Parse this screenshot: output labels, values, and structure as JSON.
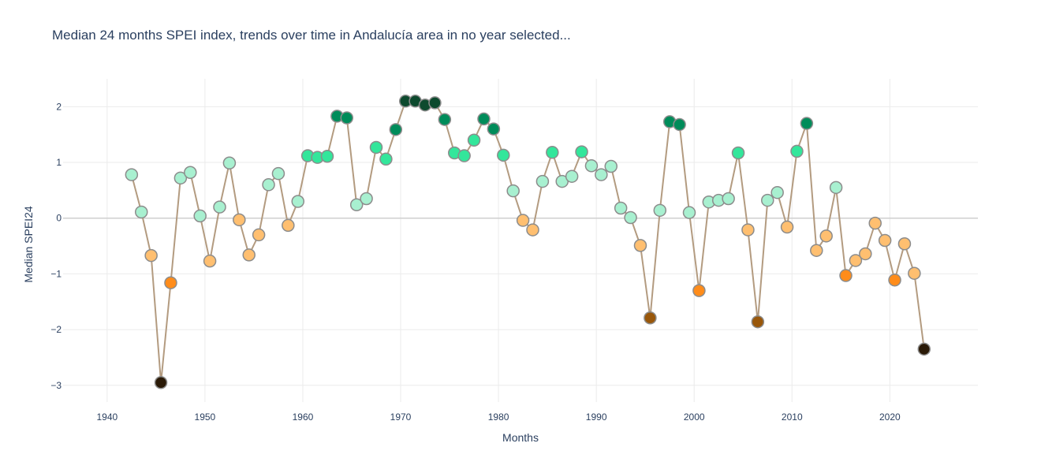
{
  "chart_data": {
    "type": "scatter",
    "mode": "lines+markers",
    "title": "Median 24 months SPEI index, trends over time in Andalucía area in no year selected...",
    "xlabel": "Months",
    "ylabel": "Median SPEI24",
    "xlim": [
      1935.5,
      2029
    ],
    "ylim": [
      -3.3,
      2.5
    ],
    "xticks": [
      1940,
      1950,
      1960,
      1970,
      1980,
      1990,
      2000,
      2010,
      2020
    ],
    "xtick_labels": [
      "1940",
      "1950",
      "1960",
      "1970",
      "1980",
      "1990",
      "2000",
      "2010",
      "2020"
    ],
    "yticks": [
      -3,
      -2,
      -1,
      0,
      1,
      2
    ],
    "ytick_labels": [
      "−3",
      "−2",
      "−1",
      "0",
      "1",
      "2"
    ],
    "grid": true,
    "line_color": "#b39b80",
    "marker_outline_color": "#8c8c8c",
    "color_scale": [
      {
        "min": 2.0,
        "color": "#0d4a2e"
      },
      {
        "min": 1.5,
        "color": "#008c5a"
      },
      {
        "min": 1.0,
        "color": "#33e69b"
      },
      {
        "min": 0.0,
        "color": "#a8f0d0"
      },
      {
        "min": -1.0,
        "color": "#ffbf70"
      },
      {
        "min": -1.5,
        "color": "#ff8c1a"
      },
      {
        "min": -2.0,
        "color": "#99570a"
      },
      {
        "min": -99,
        "color": "#2b1a07"
      }
    ],
    "x": [
      1942.5,
      1943.5,
      1944.5,
      1945.5,
      1946.5,
      1947.5,
      1948.5,
      1949.5,
      1950.5,
      1951.5,
      1952.5,
      1953.5,
      1954.5,
      1955.5,
      1956.5,
      1957.5,
      1958.5,
      1959.5,
      1960.5,
      1961.5,
      1962.5,
      1963.5,
      1964.5,
      1965.5,
      1966.5,
      1967.5,
      1968.5,
      1969.5,
      1970.5,
      1971.5,
      1972.5,
      1973.5,
      1974.5,
      1975.5,
      1976.5,
      1977.5,
      1978.5,
      1979.5,
      1980.5,
      1981.5,
      1982.5,
      1983.5,
      1984.5,
      1985.5,
      1986.5,
      1987.5,
      1988.5,
      1989.5,
      1990.5,
      1991.5,
      1992.5,
      1993.5,
      1994.5,
      1995.5,
      1996.5,
      1997.5,
      1998.5,
      1999.5,
      2000.5,
      2001.5,
      2002.5,
      2003.5,
      2004.5,
      2005.5,
      2006.5,
      2007.5,
      2008.5,
      2009.5,
      2010.5,
      2011.5,
      2012.5,
      2013.5,
      2014.5,
      2015.5,
      2016.5,
      2017.5,
      2018.5,
      2019.5,
      2020.5,
      2021.5,
      2022.5,
      2023.5
    ],
    "y": [
      0.78,
      0.11,
      -0.67,
      -2.95,
      -1.16,
      0.72,
      0.82,
      0.04,
      -0.77,
      0.2,
      0.99,
      -0.03,
      -0.66,
      -0.3,
      0.6,
      0.8,
      -0.13,
      0.3,
      1.12,
      1.09,
      1.11,
      1.83,
      1.8,
      0.24,
      0.35,
      1.27,
      1.06,
      1.59,
      2.1,
      2.1,
      2.03,
      2.07,
      1.77,
      1.17,
      1.12,
      1.4,
      1.78,
      1.6,
      1.13,
      0.49,
      -0.04,
      -0.21,
      0.66,
      1.18,
      0.66,
      0.75,
      1.19,
      0.94,
      0.78,
      0.93,
      0.18,
      0.01,
      -0.49,
      -1.79,
      0.14,
      1.73,
      1.68,
      0.1,
      -1.3,
      0.29,
      0.32,
      0.35,
      1.17,
      -0.21,
      -1.86,
      0.32,
      0.46,
      -0.16,
      1.2,
      1.7,
      -0.58,
      -0.32,
      0.55,
      -1.03,
      -0.76,
      -0.64,
      -0.09,
      -0.4,
      -1.11,
      -0.46,
      -0.99,
      -2.35
    ]
  }
}
